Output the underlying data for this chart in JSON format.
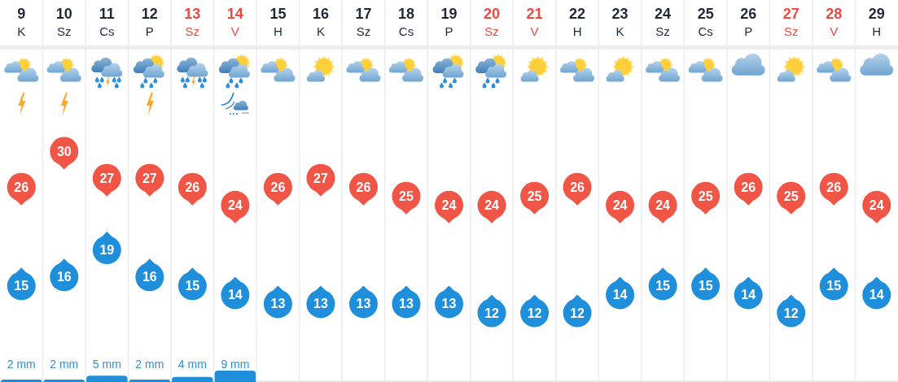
{
  "chart_data": [
    {
      "type": "scatter",
      "categories": [
        "9\nK",
        "10\nSz",
        "11\nCs",
        "12\nP",
        "13\nSz",
        "14\nV",
        "15\nH",
        "16\nK",
        "17\nSz",
        "18\nCs",
        "19\nP",
        "20\nSz",
        "21\nV",
        "22\nH",
        "23\nK",
        "24\nSz",
        "25\nCs",
        "26\nP",
        "27\nSz",
        "28\nV",
        "29\nH"
      ],
      "series": [
        {
          "color": "#f05545",
          "values": [
            26,
            30,
            27,
            27,
            26,
            24,
            26,
            27,
            26,
            25,
            24,
            24,
            25,
            26,
            24,
            24,
            25,
            26,
            25,
            26,
            24
          ]
        },
        {
          "color": "#1f8fdc",
          "values": [
            15,
            16,
            19,
            16,
            15,
            14,
            13,
            13,
            13,
            13,
            13,
            12,
            12,
            12,
            14,
            15,
            15,
            14,
            12,
            15,
            14
          ]
        }
      ],
      "data_labels": true,
      "grid": "x",
      "tick_labels": "x"
    },
    {
      "type": "bar",
      "categories": [
        null,
        null,
        null,
        null,
        null,
        null,
        null,
        null,
        null,
        null,
        null,
        null,
        null,
        null,
        null,
        null,
        null,
        null,
        null,
        null,
        null
      ],
      "color": "#1f8fdc",
      "values": [
        2,
        2,
        5,
        2,
        4,
        9,
        null,
        null,
        null,
        null,
        null,
        null,
        null,
        null,
        null,
        null,
        null,
        null,
        null,
        null,
        null
      ],
      "value_labels": [
        "2 mm",
        "2 mm",
        "5 mm",
        "2 mm",
        "4 mm",
        "9 mm",
        null,
        null,
        null,
        null,
        null,
        null,
        null,
        null,
        null,
        null,
        null,
        null,
        null,
        null,
        null
      ],
      "grid": "x",
      "tick_labels": false
    }
  ]
}
